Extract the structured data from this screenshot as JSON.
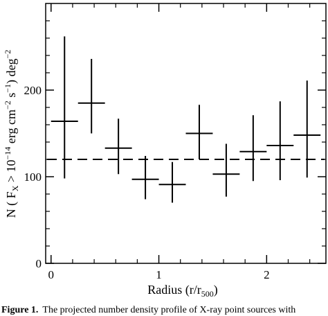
{
  "chart_data": {
    "type": "scatter",
    "xlabel_main": "Radius (r/r",
    "xlabel_sub": "500",
    "xlabel_close": ")",
    "ylabel_parts": {
      "pre": "N ( F",
      "fx_sub": "X",
      "mid": " > 10",
      "exp1": "−14",
      "mid2": " erg cm",
      "exp2": "−2",
      "mid3": " s",
      "exp3": "−1",
      "mid4": ") deg",
      "exp4": "−2"
    },
    "xlim": [
      -0.05,
      2.55
    ],
    "ylim": [
      0,
      300
    ],
    "x_ticks": [
      0,
      1,
      2
    ],
    "x_tick_labels": [
      "0",
      "1",
      "2"
    ],
    "y_ticks": [
      0,
      100,
      200
    ],
    "y_tick_labels": [
      "0",
      "100",
      "200"
    ],
    "reference_line": {
      "y": 120,
      "style": "dashed"
    },
    "points": [
      {
        "x": 0.125,
        "xerr": 0.125,
        "y": 164,
        "ylo": 98,
        "yhi": 262
      },
      {
        "x": 0.375,
        "xerr": 0.125,
        "y": 185,
        "ylo": 150,
        "yhi": 236
      },
      {
        "x": 0.625,
        "xerr": 0.125,
        "y": 133,
        "ylo": 103,
        "yhi": 167
      },
      {
        "x": 0.875,
        "xerr": 0.125,
        "y": 97,
        "ylo": 74,
        "yhi": 124
      },
      {
        "x": 1.125,
        "xerr": 0.125,
        "y": 91,
        "ylo": 70,
        "yhi": 117
      },
      {
        "x": 1.375,
        "xerr": 0.125,
        "y": 150,
        "ylo": 120,
        "yhi": 183
      },
      {
        "x": 1.625,
        "xerr": 0.125,
        "y": 103,
        "ylo": 77,
        "yhi": 138
      },
      {
        "x": 1.875,
        "xerr": 0.125,
        "y": 129,
        "ylo": 95,
        "yhi": 171
      },
      {
        "x": 2.125,
        "xerr": 0.125,
        "y": 136,
        "ylo": 96,
        "yhi": 187
      },
      {
        "x": 2.375,
        "xerr": 0.125,
        "y": 148,
        "ylo": 99,
        "yhi": 211
      }
    ],
    "grid": false,
    "line_color": "#000000"
  },
  "caption": {
    "label": "Figure 1.",
    "text": "The projected number density profile of X-ray point sources with"
  }
}
